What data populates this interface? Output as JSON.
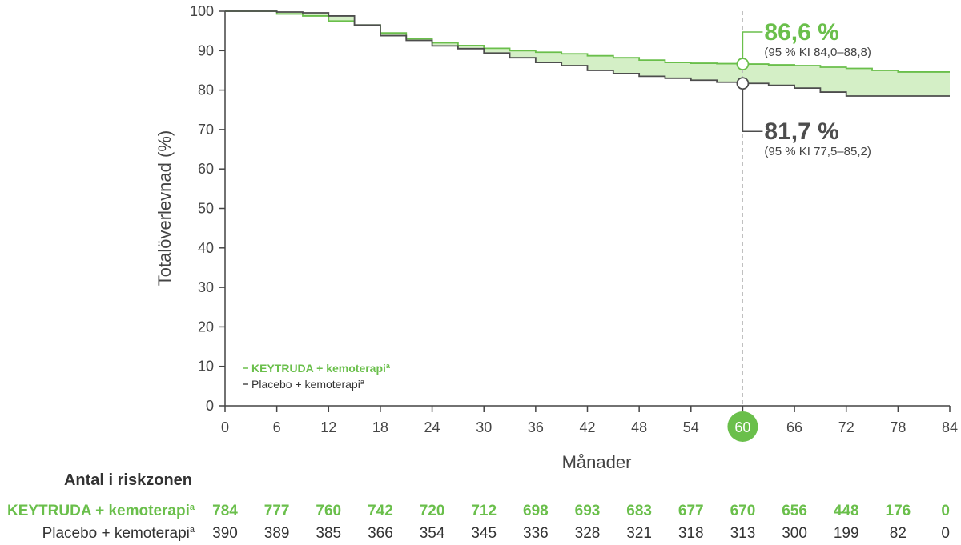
{
  "chart_data": {
    "type": "km",
    "ylabel": "Totalöverlevnad (%)",
    "xlabel": "Månader",
    "xlim": [
      0,
      84
    ],
    "ylim": [
      0,
      100
    ],
    "xticks": [
      0,
      6,
      12,
      18,
      24,
      30,
      36,
      42,
      48,
      54,
      60,
      66,
      72,
      78,
      84
    ],
    "yticks": [
      0,
      10,
      20,
      30,
      40,
      50,
      60,
      70,
      80,
      90,
      100
    ],
    "x": [
      0,
      3,
      6,
      9,
      12,
      15,
      18,
      21,
      24,
      27,
      30,
      33,
      36,
      39,
      42,
      45,
      48,
      51,
      54,
      57,
      60,
      63,
      66,
      69,
      72,
      75,
      78,
      84
    ],
    "series": [
      {
        "name": "KEYTRUDA + kemoterapi",
        "note": "a",
        "color": "#6abf4b",
        "values": [
          100,
          100,
          99.3,
          98.8,
          97.5,
          96.5,
          94.5,
          93,
          92,
          91.3,
          90.6,
          90,
          89.6,
          89.2,
          88.7,
          88.2,
          87.6,
          87,
          86.8,
          86.7,
          86.6,
          86.4,
          86.2,
          85.8,
          85.5,
          85,
          84.6,
          84.6
        ]
      },
      {
        "name": "Placebo + kemoterapi",
        "note": "a",
        "color": "#4d4d4d",
        "values": [
          100,
          100,
          99.8,
          99.6,
          98.8,
          96.5,
          93.8,
          92.6,
          91.2,
          90.5,
          89.4,
          88.2,
          87,
          86.2,
          85,
          84.2,
          83.5,
          83,
          82.5,
          82,
          81.7,
          81.2,
          80.5,
          79.5,
          78.5,
          78.5,
          78.5,
          78.5
        ]
      }
    ],
    "band_color": "#d4efc6",
    "annotations": [
      {
        "x": 60,
        "y": 86.6,
        "label": "86,6 %",
        "ci": "(95 % KI 84,0–88,8)"
      },
      {
        "x": 60,
        "y": 81.7,
        "label": "81,7 %",
        "ci": "(95 % KI 77,5–85,2)"
      }
    ],
    "risk_table": {
      "title": "Antal i riskzonen",
      "rows": [
        {
          "name": "KEYTRUDA + kemoterapi",
          "note": "a",
          "values": [
            784,
            777,
            760,
            742,
            720,
            712,
            698,
            693,
            683,
            677,
            670,
            656,
            448,
            176,
            0
          ]
        },
        {
          "name": "Placebo + kemoterapi",
          "note": "a",
          "values": [
            390,
            389,
            385,
            366,
            354,
            345,
            336,
            328,
            321,
            318,
            313,
            300,
            199,
            82,
            0
          ]
        }
      ]
    }
  }
}
